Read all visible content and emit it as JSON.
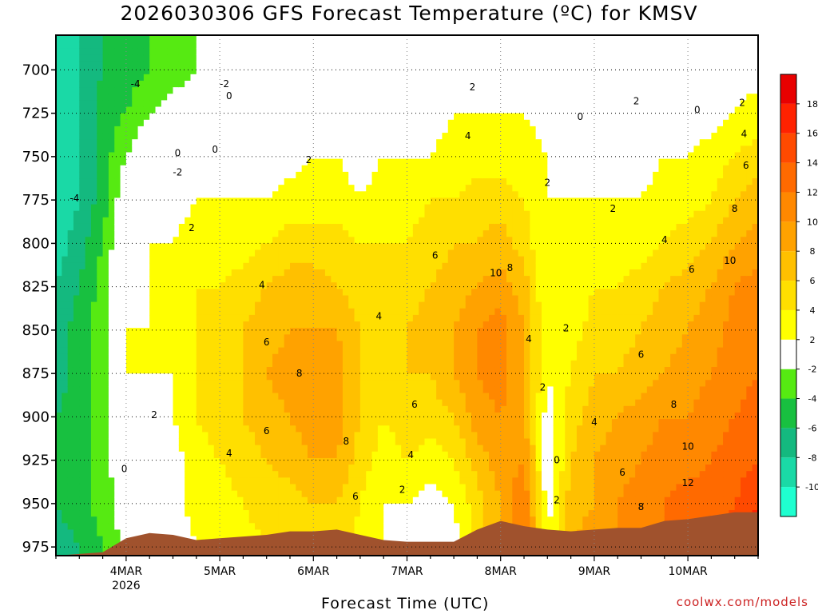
{
  "title": "2026030306 GFS Forecast Temperature (ºC) for KMSV",
  "xlabel": "Forecast Time (UTC)",
  "credit": "coolwx.com/models",
  "chart_data": {
    "type": "heatmap",
    "title": "2026030306 GFS Forecast Temperature (ºC) for KMSV",
    "xlabel": "Forecast Time (UTC)",
    "ylabel": "",
    "y_axis": "pressure (hPa), inverted",
    "y_ticks": [
      700,
      725,
      750,
      775,
      800,
      825,
      850,
      875,
      900,
      925,
      950,
      975
    ],
    "ylim": [
      980,
      680
    ],
    "x_ticks": [
      {
        "day": 4,
        "label": "4MAR",
        "sub": "2026"
      },
      {
        "day": 5,
        "label": "5MAR",
        "sub": ""
      },
      {
        "day": 6,
        "label": "6MAR",
        "sub": ""
      },
      {
        "day": 7,
        "label": "7MAR",
        "sub": ""
      },
      {
        "day": 8,
        "label": "8MAR",
        "sub": ""
      },
      {
        "day": 9,
        "label": "9MAR",
        "sub": ""
      },
      {
        "day": 10,
        "label": "10MAR",
        "sub": ""
      }
    ],
    "xlim_days": [
      3.25,
      10.75
    ],
    "grid": true,
    "colorbar": {
      "boundaries": [
        -12,
        -10,
        -8,
        -6,
        -4,
        -2,
        2,
        4,
        6,
        8,
        10,
        12,
        14,
        16,
        18,
        20
      ],
      "labels": [
        -10,
        -8,
        -6,
        -4,
        -2,
        2,
        4,
        6,
        8,
        10,
        12,
        14,
        16,
        18
      ],
      "colors": [
        "#1fffd0",
        "#1ad9a6",
        "#14b97f",
        "#18c040",
        "#56ea12",
        "#ffffff",
        "#ffff00",
        "#ffdf00",
        "#ffc000",
        "#ffa200",
        "#ff8800",
        "#ff6a00",
        "#ff4a00",
        "#ff2200",
        "#e80000"
      ]
    },
    "terrain_color": "#a0522d",
    "freezing_contour_color": "#c0267a",
    "series": [
      {
        "time_day": 3.25,
        "temps": [
          -10,
          -10,
          -10,
          -10,
          -9,
          -8,
          -7,
          -7,
          -6,
          -6,
          -6,
          -7
        ]
      },
      {
        "time_day": 3.5,
        "temps": [
          -8,
          -8,
          -8,
          -8,
          -7,
          -6,
          -5,
          -5,
          -5,
          -5,
          -5,
          -6
        ]
      },
      {
        "time_day": 3.75,
        "temps": [
          -6,
          -5,
          -5,
          -5,
          -4,
          -3,
          -3,
          -3,
          -3,
          -3,
          -3,
          -4
        ]
      },
      {
        "time_day": 4.0,
        "temps": [
          -5,
          -4,
          -2,
          0,
          1,
          1,
          2,
          2,
          1,
          0,
          -1,
          -1
        ]
      },
      {
        "time_day": 4.25,
        "temps": [
          -4,
          -2,
          0,
          1,
          2,
          2,
          2,
          2,
          1,
          0,
          -1,
          -1
        ]
      },
      {
        "time_day": 4.5,
        "temps": [
          -3,
          -1,
          0,
          1,
          2,
          3,
          3,
          2,
          2,
          1,
          1,
          0
        ]
      },
      {
        "time_day": 4.75,
        "temps": [
          -2,
          -1,
          1,
          2,
          3,
          4,
          4,
          4,
          4,
          3,
          3,
          2
        ]
      },
      {
        "time_day": 5.0,
        "temps": [
          -2,
          -1,
          1,
          2,
          3,
          4,
          5,
          5,
          5,
          4,
          3,
          3
        ]
      },
      {
        "time_day": 5.25,
        "temps": [
          -1,
          0,
          1,
          2,
          3,
          5,
          6,
          6,
          6,
          5,
          4,
          3
        ]
      },
      {
        "time_day": 5.5,
        "temps": [
          -1,
          0,
          1,
          2,
          4,
          6,
          7,
          8,
          7,
          6,
          5,
          4
        ]
      },
      {
        "time_day": 5.75,
        "temps": [
          -1,
          0,
          1,
          3,
          5,
          7,
          8,
          9,
          8,
          7,
          5,
          4
        ]
      },
      {
        "time_day": 6.0,
        "temps": [
          -1,
          0,
          2,
          3,
          5,
          7,
          8,
          9,
          9,
          8,
          6,
          4
        ]
      },
      {
        "time_day": 6.25,
        "temps": [
          -1,
          0,
          2,
          3,
          5,
          6,
          8,
          9,
          9,
          8,
          6,
          5
        ]
      },
      {
        "time_day": 6.5,
        "temps": [
          -1,
          0,
          1,
          2,
          4,
          5,
          6,
          6,
          6,
          5,
          4,
          3
        ]
      },
      {
        "time_day": 6.75,
        "temps": [
          -1,
          1,
          2,
          3,
          4,
          5,
          5,
          5,
          4,
          3,
          2,
          2
        ]
      },
      {
        "time_day": 7.0,
        "temps": [
          -1,
          1,
          2,
          3,
          4,
          5,
          6,
          6,
          5,
          4,
          2,
          1
        ]
      },
      {
        "time_day": 7.25,
        "temps": [
          0,
          1,
          2,
          4,
          5,
          6,
          7,
          6,
          5,
          3,
          1,
          0
        ]
      },
      {
        "time_day": 7.5,
        "temps": [
          0,
          2,
          3,
          4,
          6,
          7,
          8,
          8,
          6,
          4,
          2,
          1
        ]
      },
      {
        "time_day": 7.75,
        "temps": [
          1,
          2,
          3,
          5,
          6,
          8,
          10,
          10,
          9,
          7,
          5,
          5
        ]
      },
      {
        "time_day": 8.0,
        "temps": [
          1,
          2,
          3,
          5,
          7,
          9,
          11,
          11,
          10,
          9,
          8,
          8
        ]
      },
      {
        "time_day": 8.25,
        "temps": [
          1,
          2,
          3,
          4,
          5,
          7,
          8,
          8,
          8,
          10,
          12,
          12
        ]
      },
      {
        "time_day": 8.5,
        "temps": [
          0,
          1,
          2,
          2,
          2,
          2,
          2,
          2,
          1,
          0,
          1,
          2
        ]
      },
      {
        "time_day": 8.75,
        "temps": [
          -1,
          0,
          1,
          2,
          2,
          2,
          3,
          4,
          5,
          6,
          7,
          8
        ]
      },
      {
        "time_day": 9.0,
        "temps": [
          -1,
          0,
          1,
          2,
          3,
          4,
          5,
          6,
          7,
          8,
          8,
          9
        ]
      },
      {
        "time_day": 9.25,
        "temps": [
          -1,
          0,
          1,
          2,
          3,
          4,
          5,
          6,
          8,
          9,
          10,
          10
        ]
      },
      {
        "time_day": 9.5,
        "temps": [
          -1,
          0,
          1,
          2,
          3,
          5,
          6,
          7,
          9,
          10,
          11,
          11
        ]
      },
      {
        "time_day": 9.75,
        "temps": [
          -1,
          0,
          2,
          3,
          4,
          6,
          7,
          8,
          10,
          11,
          12,
          12
        ]
      },
      {
        "time_day": 10.0,
        "temps": [
          0,
          1,
          2,
          3,
          5,
          7,
          8,
          9,
          10,
          11,
          13,
          13
        ]
      },
      {
        "time_day": 10.25,
        "temps": [
          0,
          1,
          3,
          4,
          6,
          8,
          9,
          10,
          11,
          12,
          13,
          14
        ]
      },
      {
        "time_day": 10.5,
        "temps": [
          1,
          2,
          4,
          6,
          8,
          10,
          11,
          11,
          12,
          13,
          14,
          15
        ]
      },
      {
        "time_day": 10.75,
        "temps": [
          1,
          3,
          5,
          7,
          9,
          11,
          12,
          12,
          13,
          14,
          16,
          18
        ]
      }
    ],
    "surface_pressure": [
      {
        "time_day": 3.25,
        "p": 980
      },
      {
        "time_day": 3.75,
        "p": 978
      },
      {
        "time_day": 4.0,
        "p": 970
      },
      {
        "time_day": 4.25,
        "p": 967
      },
      {
        "time_day": 4.5,
        "p": 968
      },
      {
        "time_day": 4.75,
        "p": 971
      },
      {
        "time_day": 5.0,
        "p": 970
      },
      {
        "time_day": 5.25,
        "p": 969
      },
      {
        "time_day": 5.5,
        "p": 968
      },
      {
        "time_day": 5.75,
        "p": 966
      },
      {
        "time_day": 6.0,
        "p": 966
      },
      {
        "time_day": 6.25,
        "p": 965
      },
      {
        "time_day": 6.5,
        "p": 968
      },
      {
        "time_day": 6.75,
        "p": 971
      },
      {
        "time_day": 7.0,
        "p": 972
      },
      {
        "time_day": 7.25,
        "p": 972
      },
      {
        "time_day": 7.5,
        "p": 972
      },
      {
        "time_day": 7.75,
        "p": 965
      },
      {
        "time_day": 8.0,
        "p": 960
      },
      {
        "time_day": 8.25,
        "p": 963
      },
      {
        "time_day": 8.5,
        "p": 965
      },
      {
        "time_day": 8.75,
        "p": 966
      },
      {
        "time_day": 9.0,
        "p": 965
      },
      {
        "time_day": 9.25,
        "p": 964
      },
      {
        "time_day": 9.5,
        "p": 964
      },
      {
        "time_day": 9.75,
        "p": 960
      },
      {
        "time_day": 10.0,
        "p": 959
      },
      {
        "time_day": 10.25,
        "p": 957
      },
      {
        "time_day": 10.5,
        "p": 955
      },
      {
        "time_day": 10.75,
        "p": 955
      }
    ],
    "contour_labels": [
      {
        "value": "-4",
        "day": 4.1,
        "p": 708
      },
      {
        "value": "-2",
        "day": 5.05,
        "p": 708
      },
      {
        "value": "0",
        "day": 5.1,
        "p": 715
      },
      {
        "value": "0",
        "day": 4.55,
        "p": 748
      },
      {
        "value": "0",
        "day": 4.95,
        "p": 746
      },
      {
        "value": "-2",
        "day": 4.55,
        "p": 759
      },
      {
        "value": "-4",
        "day": 3.45,
        "p": 774
      },
      {
        "value": "2",
        "day": 5.95,
        "p": 752
      },
      {
        "value": "2",
        "day": 4.7,
        "p": 791
      },
      {
        "value": "2",
        "day": 7.7,
        "p": 710
      },
      {
        "value": "4",
        "day": 7.65,
        "p": 738
      },
      {
        "value": "0",
        "day": 8.85,
        "p": 727
      },
      {
        "value": "2",
        "day": 9.45,
        "p": 718
      },
      {
        "value": "0",
        "day": 10.1,
        "p": 723
      },
      {
        "value": "2",
        "day": 10.58,
        "p": 719
      },
      {
        "value": "4",
        "day": 10.6,
        "p": 737
      },
      {
        "value": "6",
        "day": 10.62,
        "p": 755
      },
      {
        "value": "2",
        "day": 8.5,
        "p": 765
      },
      {
        "value": "2",
        "day": 9.2,
        "p": 780
      },
      {
        "value": "4",
        "day": 9.75,
        "p": 798
      },
      {
        "value": "8",
        "day": 10.5,
        "p": 780
      },
      {
        "value": "6",
        "day": 10.04,
        "p": 815
      },
      {
        "value": "10",
        "day": 10.45,
        "p": 810
      },
      {
        "value": "4",
        "day": 5.45,
        "p": 824
      },
      {
        "value": "6",
        "day": 7.3,
        "p": 807
      },
      {
        "value": "10",
        "day": 7.95,
        "p": 817
      },
      {
        "value": "8",
        "day": 8.1,
        "p": 814
      },
      {
        "value": "2",
        "day": 8.7,
        "p": 849
      },
      {
        "value": "4",
        "day": 6.7,
        "p": 842
      },
      {
        "value": "6",
        "day": 5.5,
        "p": 857
      },
      {
        "value": "8",
        "day": 5.85,
        "p": 875
      },
      {
        "value": "6",
        "day": 9.5,
        "p": 864
      },
      {
        "value": "4",
        "day": 8.3,
        "p": 855
      },
      {
        "value": "8",
        "day": 9.85,
        "p": 893
      },
      {
        "value": "6",
        "day": 7.08,
        "p": 893
      },
      {
        "value": "2",
        "day": 8.45,
        "p": 883
      },
      {
        "value": "2",
        "day": 4.3,
        "p": 899
      },
      {
        "value": "6",
        "day": 5.5,
        "p": 908
      },
      {
        "value": "8",
        "day": 6.35,
        "p": 914
      },
      {
        "value": "4",
        "day": 9.0,
        "p": 903
      },
      {
        "value": "10",
        "day": 10.0,
        "p": 917
      },
      {
        "value": "4",
        "day": 5.1,
        "p": 921
      },
      {
        "value": "4",
        "day": 7.04,
        "p": 922
      },
      {
        "value": "0",
        "day": 3.98,
        "p": 930
      },
      {
        "value": "0",
        "day": 8.6,
        "p": 925
      },
      {
        "value": "6",
        "day": 9.3,
        "p": 932
      },
      {
        "value": "12",
        "day": 10.0,
        "p": 938
      },
      {
        "value": "6",
        "day": 6.45,
        "p": 946
      },
      {
        "value": "2",
        "day": 6.95,
        "p": 942
      },
      {
        "value": "2",
        "day": 8.6,
        "p": 948
      },
      {
        "value": "8",
        "day": 9.5,
        "p": 952
      }
    ]
  }
}
